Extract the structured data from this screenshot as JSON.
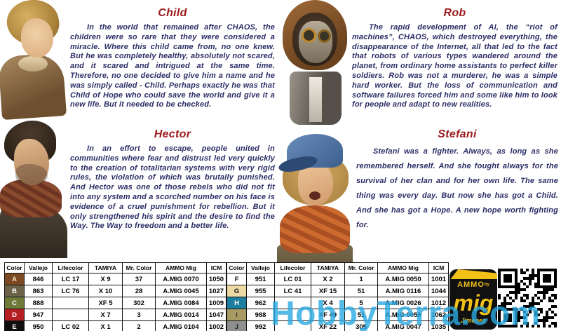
{
  "colors": {
    "title": "#9c1a1c",
    "body_text": "#2b2d66",
    "watermark": "#2aa9e2",
    "logo_yellow": "#f2c117",
    "logo_black": "#111111"
  },
  "sections": [
    {
      "id": "child",
      "title": "Child",
      "text": "In the world that remained after CHAOS, the children were so rare that they were considered a miracle. Where this child came from, no one knew. But he was completely healthy, absolutely not scared, and it scared and intrigued at the same time. Therefore, no one decided to give him a name and he was simply called - Child. Perhaps exactly he was that Child of Hope who could save the world and give it a new life. But it needed to be checked."
    },
    {
      "id": "rob",
      "title": "Rob",
      "text": "The rapid development of AI, the “riot of machines”, CHAOS, which destroyed everything, the disappearance of the Internet, all that led to the fact that robots of various types wandered around the planet, from ordinary home assistants to perfect killer soldiers. Rob was not a murderer, he was a simple hard worker. But the loss of communication and software failures forced him and some like him to look for people and adapt to new realities."
    },
    {
      "id": "hector",
      "title": "Hector",
      "text": "In an effort to escape, people united in communities where fear and distrust led very quickly to the creation of totalitarian systems with very rigid rules, the violation of which was brutally punished. And Hector was one of those rebels who did not fit into any system and a scorched number on his face is evidence of a cruel punishment for rebellion. But it only strengthened his spirit and the desire to find the Way. The Way to freedom and a better life."
    },
    {
      "id": "stefani",
      "title": "Stefani",
      "text": "Stefani was a fighter. Always, as long as she remembered herself. And she fought always for the survival of her clan and for her own life. The same thing was every day. But now she has got a Child. And she has got a Hope. A new hope worth fighting for."
    }
  ],
  "paint_table": {
    "headers": [
      "Color",
      "Vallejo",
      "Lifecolor",
      "TAMIYA",
      "Mr. Color",
      "AMMO Mig",
      "ICM"
    ],
    "left": [
      {
        "letter": "A",
        "swatch": "#7c4a22",
        "letter_color": "#f2e4c2",
        "vallejo": "846",
        "lifecolor": "LC 17",
        "tamiya": "X 9",
        "mr_color": "37",
        "ammo_mig": "A.MIG 0070",
        "icm": "1050"
      },
      {
        "letter": "B",
        "swatch": "#6c6149",
        "letter_color": "#ffffff",
        "vallejo": "863",
        "lifecolor": "LC 76",
        "tamiya": "X 10",
        "mr_color": "28",
        "ammo_mig": "A.MIG 0045",
        "icm": "1027"
      },
      {
        "letter": "C",
        "swatch": "#6f7a39",
        "letter_color": "#ffffff",
        "vallejo": "888",
        "lifecolor": "",
        "tamiya": "XF 5",
        "mr_color": "302",
        "ammo_mig": "A.MIG 0084",
        "icm": "1009"
      },
      {
        "letter": "D",
        "swatch": "#b51f24",
        "letter_color": "#ffffff",
        "vallejo": "947",
        "lifecolor": "",
        "tamiya": "X 7",
        "mr_color": "3",
        "ammo_mig": "A.MIG 0014",
        "icm": "1047"
      },
      {
        "letter": "E",
        "swatch": "#0e0e0e",
        "letter_color": "#ffffff",
        "vallejo": "950",
        "lifecolor": "LC 02",
        "tamiya": "X 1",
        "mr_color": "2",
        "ammo_mig": "A.MIG 0104",
        "icm": "1002"
      }
    ],
    "right": [
      {
        "letter": "F",
        "swatch": "#ffffff",
        "letter_color": "#111111",
        "vallejo": "951",
        "lifecolor": "LC 01",
        "tamiya": "X 2",
        "mr_color": "1",
        "ammo_mig": "A.MIG 0050",
        "icm": "1001"
      },
      {
        "letter": "G",
        "swatch": "#ecd9a4",
        "letter_color": "#111111",
        "vallejo": "955",
        "lifecolor": "LC 41",
        "tamiya": "XF 15",
        "mr_color": "51",
        "ammo_mig": "A.MIG 0116",
        "icm": "1044"
      },
      {
        "letter": "H",
        "swatch": "#1c7fa0",
        "letter_color": "#ffffff",
        "vallejo": "962",
        "lifecolor": "",
        "tamiya": "X 4",
        "mr_color": "5",
        "ammo_mig": "A.MIG 0026",
        "icm": "1012"
      },
      {
        "letter": "I",
        "swatch": "#a89a63",
        "letter_color": "#3a3a2a",
        "vallejo": "988",
        "lifecolor": "",
        "tamiya": "XF 49",
        "mr_color": "51",
        "ammo_mig": "A.MIG 0059",
        "icm": "1062"
      },
      {
        "letter": "J",
        "swatch": "#8f8f8f",
        "letter_color": "#1a1a1a",
        "vallejo": "992",
        "lifecolor": "",
        "tamiya": "XF 22",
        "mr_color": "305",
        "ammo_mig": "A.MIG 0047",
        "icm": "1035"
      }
    ]
  },
  "branding": {
    "ammo": "AMMO",
    "by": "by",
    "mig": "mig",
    "jimenez": "Jimenez"
  },
  "watermark": {
    "text": "HobbyTerra.com"
  }
}
